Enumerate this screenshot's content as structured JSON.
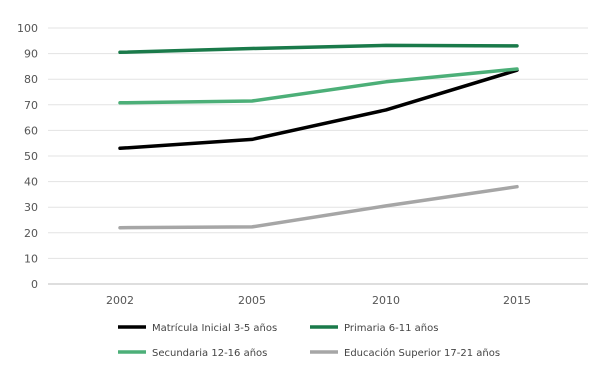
{
  "chart_data": {
    "type": "line",
    "categories": [
      "2002",
      "2005",
      "2010",
      "2015"
    ],
    "ylim": [
      0,
      100
    ],
    "yticks": [
      0,
      10,
      20,
      30,
      40,
      50,
      60,
      70,
      80,
      90,
      100
    ],
    "grid": "horizontal",
    "legend_position": "bottom",
    "series": [
      {
        "name": "Matrícula Inicial 3-5 años",
        "color": "#000000",
        "values": [
          53,
          56.5,
          68,
          83.5
        ]
      },
      {
        "name": "Primaria 6-11 años",
        "color": "#1a7a4a",
        "values": [
          90.5,
          92,
          93.2,
          93
        ]
      },
      {
        "name": "Secundaria 12-16 años",
        "color": "#4caf78",
        "values": [
          70.8,
          71.5,
          79,
          84
        ]
      },
      {
        "name": "Educación Superior 17-21 años",
        "color": "#a6a6a6",
        "values": [
          22,
          22.3,
          30.5,
          38
        ]
      }
    ]
  }
}
